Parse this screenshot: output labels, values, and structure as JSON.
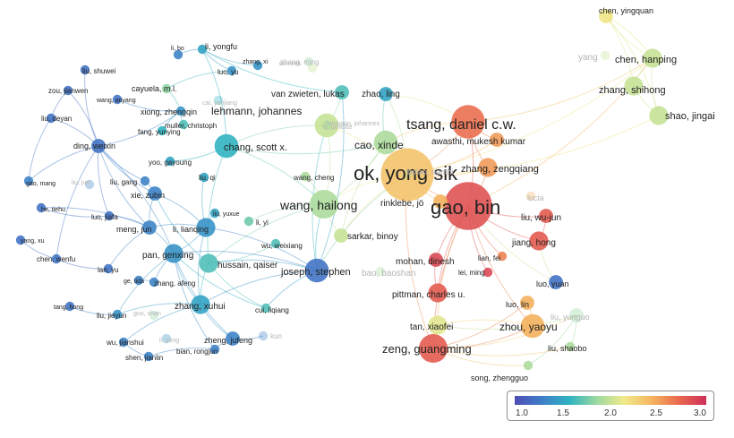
{
  "nodes": [
    {
      "label": "ok, yong sik",
      "score": 2.4,
      "weight": 10
    },
    {
      "label": "gao, bin",
      "score": 2.95,
      "weight": 9
    },
    {
      "label": "tsang, daniel c.w.",
      "score": 2.8,
      "weight": 6
    },
    {
      "label": "wang, hailong",
      "score": 1.9,
      "weight": 5
    },
    {
      "label": "zeng, guangming",
      "score": 2.9,
      "weight": 5
    },
    {
      "label": "zhou, yaoyu",
      "score": 2.5,
      "weight": 4
    },
    {
      "label": "chang, scott x.",
      "score": 1.5,
      "weight": 4
    },
    {
      "label": "lehmann, johannes",
      "score": 2.0,
      "weight": 4
    },
    {
      "label": "cao, xinde",
      "score": 1.9,
      "weight": 4
    },
    {
      "label": "joseph, stephen",
      "score": 1.1,
      "weight": 4
    },
    {
      "label": "chen, hanping",
      "score": 2.0,
      "weight": 3
    },
    {
      "label": "zhang, shihong",
      "score": 2.0,
      "weight": 3
    },
    {
      "label": "shao, jingai",
      "score": 2.0,
      "weight": 3
    },
    {
      "label": "chen, yingquan",
      "score": 2.2,
      "weight": 2
    },
    {
      "label": "zhang, zengqiang",
      "score": 2.6,
      "weight": 3
    },
    {
      "label": "jiang, hong",
      "score": 2.9,
      "weight": 3
    },
    {
      "label": "liu, wu-jun",
      "score": 2.9,
      "weight": 2
    },
    {
      "label": "pittman, charles u.",
      "score": 2.9,
      "weight": 3
    },
    {
      "label": "tan, xiaofei",
      "score": 2.1,
      "weight": 3
    },
    {
      "label": "zhang, xuhui",
      "score": 1.4,
      "weight": 3
    },
    {
      "label": "hussain, qaiser",
      "score": 1.6,
      "weight": 3
    },
    {
      "label": "pan, genxing",
      "score": 1.3,
      "weight": 3
    },
    {
      "label": "sarkar, binoy",
      "score": 2.0,
      "weight": 2
    },
    {
      "label": "mohan, dinesh",
      "score": 3.0,
      "weight": 2
    },
    {
      "label": "zhao, ling",
      "score": 1.4,
      "weight": 2
    },
    {
      "label": "awasthi, mukesh kumar",
      "score": 2.6,
      "weight": 2
    },
    {
      "label": "rinklebe, jö",
      "score": 2.5,
      "weight": 2
    },
    {
      "label": "li, lianqing",
      "score": 1.3,
      "weight": 3
    },
    {
      "label": "ding, weixin",
      "score": 1.1,
      "weight": 2
    },
    {
      "label": "meng, jun",
      "score": 1.2,
      "weight": 2
    },
    {
      "label": "xie, zubin",
      "score": 1.2,
      "weight": 2
    },
    {
      "label": "van zwieten, lukas",
      "score": 1.6,
      "weight": 2
    },
    {
      "label": "zheng, jufeng",
      "score": 1.2,
      "weight": 2
    },
    {
      "label": "luo, yuan",
      "score": 1.1,
      "weight": 2
    },
    {
      "label": "luo, lin",
      "score": 2.5,
      "weight": 2
    },
    {
      "label": "liu, yunguo",
      "score": 1.8,
      "weight": 2
    },
    {
      "label": "liu, shaobo",
      "score": 1.9,
      "weight": 1
    },
    {
      "label": "song, zhengguo",
      "score": 1.9,
      "weight": 1
    },
    {
      "label": "lian, fei",
      "score": 2.7,
      "weight": 1
    },
    {
      "label": "lei, ming",
      "score": 3.0,
      "weight": 1
    },
    {
      "label": "li, yongfu",
      "score": 1.4,
      "weight": 1
    },
    {
      "label": "li, bo",
      "score": 1.2,
      "weight": 1
    },
    {
      "label": "zhang, xi",
      "score": 1.3,
      "weight": 1
    },
    {
      "label": "luo, yu",
      "score": 1.3,
      "weight": 1
    },
    {
      "label": "liu, shuwei",
      "score": 1.1,
      "weight": 1
    },
    {
      "label": "zou, jianwen",
      "score": 1.1,
      "weight": 1
    },
    {
      "label": "wang, anyang",
      "score": 1.1,
      "weight": 1
    },
    {
      "label": "cayuela, m.l.",
      "score": 1.8,
      "weight": 1
    },
    {
      "label": "cai, yanjiang",
      "score": 1.5,
      "weight": 1
    },
    {
      "label": "xiong, zhengqin",
      "score": 1.3,
      "weight": 1
    },
    {
      "label": "liu, deyan",
      "score": 1.1,
      "weight": 1
    },
    {
      "label": "muller, christoph",
      "score": 1.6,
      "weight": 1
    },
    {
      "label": "fang, yunying",
      "score": 1.5,
      "weight": 1
    },
    {
      "label": "yoo, gayoung",
      "score": 1.4,
      "weight": 1
    },
    {
      "label": "wang, cheng",
      "score": 1.9,
      "weight": 1
    },
    {
      "label": "gao, mang",
      "score": 1.2,
      "weight": 1
    },
    {
      "label": "liu, gang",
      "score": 1.2,
      "weight": 1
    },
    {
      "label": "liu, qi",
      "score": 1.4,
      "weight": 1
    },
    {
      "label": "he, tiehu",
      "score": 1.1,
      "weight": 1
    },
    {
      "label": "luo, jiafa",
      "score": 1.1,
      "weight": 1
    },
    {
      "label": "liu, yuxue",
      "score": 1.4,
      "weight": 1
    },
    {
      "label": "li, yi",
      "score": 1.7,
      "weight": 1
    },
    {
      "label": "yang, xu",
      "score": 1.1,
      "weight": 1
    },
    {
      "label": "wu, weixiang",
      "score": 1.6,
      "weight": 1
    },
    {
      "label": "chen, wenfu",
      "score": 1.1,
      "weight": 1
    },
    {
      "label": "lan, yu",
      "score": 1.1,
      "weight": 1
    },
    {
      "label": "ge, tida",
      "score": 1.2,
      "weight": 1
    },
    {
      "label": "zhang, afeng",
      "score": 1.2,
      "weight": 1
    },
    {
      "label": "tang, hong",
      "score": 1.1,
      "weight": 1
    },
    {
      "label": "liu, jieyun",
      "score": 1.3,
      "weight": 1
    },
    {
      "label": "cui, liqiang",
      "score": 1.6,
      "weight": 1
    },
    {
      "label": "wu, jianshui",
      "score": 1.2,
      "weight": 1
    },
    {
      "label": "li, yong",
      "score": 1.3,
      "weight": 1
    },
    {
      "label": "bian, rongjun",
      "score": 1.2,
      "weight": 1
    },
    {
      "label": "shen, jianlin",
      "score": 1.2,
      "weight": 1
    },
    {
      "label": "kun",
      "score": 1.2,
      "weight": 1
    },
    {
      "label": "liu, jun",
      "score": 1.2,
      "weight": 1
    },
    {
      "label": "guo, shan",
      "score": 1.8,
      "weight": 1
    },
    {
      "label": "zhang, ming",
      "score": 2.0,
      "weight": 1
    },
    {
      "label": "lucia",
      "score": 2.5,
      "weight": 1
    },
    {
      "label": "dominik",
      "score": 1.8,
      "weight": 1
    },
    {
      "label": "yang",
      "score": 2.0,
      "weight": 1
    },
    {
      "label": "s, janette",
      "score": 1.8,
      "weight": 1
    },
    {
      "label": "bolan, nanthi",
      "score": 1.9,
      "weight": 1
    },
    {
      "label": "bao, baoshan",
      "score": 1.9,
      "weight": 1
    },
    {
      "label": "lehmann, johannes",
      "score": 2.0,
      "weight": 1
    }
  ],
  "legend": {
    "ticks": [
      "1.0",
      "1.5",
      "2.0",
      "2.5",
      "3.0"
    ],
    "min": 0.85,
    "max": 3.15
  }
}
